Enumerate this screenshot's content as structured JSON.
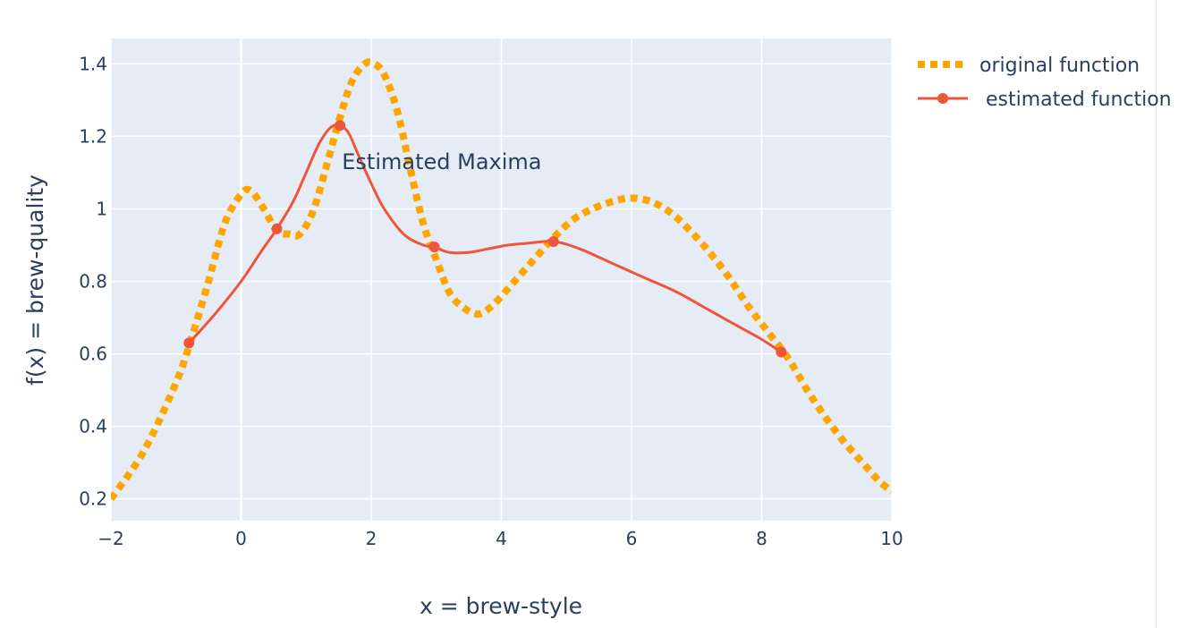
{
  "chart_data": {
    "type": "line",
    "xlabel": "x = brew-style",
    "ylabel": "f(x) = brew-quality",
    "xlim": [
      -2,
      10
    ],
    "ylim": [
      0.14,
      1.47
    ],
    "x_ticks": [
      "−2",
      "0",
      "2",
      "4",
      "6",
      "8",
      "10"
    ],
    "x_tick_values": [
      -2,
      0,
      2,
      4,
      6,
      8,
      10
    ],
    "y_ticks": [
      "0.2",
      "0.4",
      "0.6",
      "0.8",
      "1",
      "1.2",
      "1.4"
    ],
    "y_tick_values": [
      0.2,
      0.4,
      0.6,
      0.8,
      1.0,
      1.2,
      1.4
    ],
    "grid": true,
    "legend_position": "top-right",
    "series": [
      {
        "name": "original function",
        "style": "dotted",
        "color": "#ffa500",
        "x": [
          -2.0,
          -1.5,
          -1.0,
          -0.75,
          -0.5,
          -0.25,
          0.0,
          0.15,
          0.35,
          0.55,
          0.75,
          0.9,
          1.1,
          1.3,
          1.5,
          1.7,
          1.9,
          2.05,
          2.2,
          2.4,
          2.6,
          2.8,
          3.0,
          3.2,
          3.4,
          3.65,
          3.9,
          4.2,
          4.5,
          4.8,
          5.1,
          5.4,
          5.7,
          6.0,
          6.3,
          6.6,
          6.9,
          7.2,
          7.5,
          7.8,
          8.1,
          8.4,
          8.7,
          9.0,
          9.3,
          9.6,
          9.8,
          10.0
        ],
        "y": [
          0.2,
          0.33,
          0.52,
          0.65,
          0.8,
          0.96,
          1.04,
          1.05,
          1.0,
          0.94,
          0.93,
          0.93,
          0.99,
          1.11,
          1.24,
          1.35,
          1.4,
          1.4,
          1.37,
          1.27,
          1.11,
          0.96,
          0.86,
          0.77,
          0.73,
          0.71,
          0.74,
          0.8,
          0.86,
          0.92,
          0.97,
          1.0,
          1.02,
          1.03,
          1.02,
          0.99,
          0.94,
          0.88,
          0.81,
          0.73,
          0.66,
          0.59,
          0.5,
          0.42,
          0.35,
          0.29,
          0.25,
          0.22
        ]
      },
      {
        "name": " estimated function",
        "style": "lines+markers",
        "color": "#ef553b",
        "markers_x": [
          -0.8,
          0.55,
          1.52,
          2.97,
          4.8,
          8.3
        ],
        "markers_y": [
          0.63,
          0.945,
          1.23,
          0.895,
          0.91,
          0.605
        ],
        "x": [
          -0.8,
          -0.4,
          0.0,
          0.3,
          0.55,
          0.8,
          1.0,
          1.2,
          1.38,
          1.52,
          1.65,
          1.8,
          2.0,
          2.2,
          2.5,
          2.8,
          2.97,
          3.2,
          3.5,
          3.8,
          4.1,
          4.4,
          4.8,
          5.2,
          5.7,
          6.2,
          6.7,
          7.2,
          7.7,
          8.0,
          8.3
        ],
        "y": [
          0.63,
          0.71,
          0.8,
          0.88,
          0.945,
          1.02,
          1.1,
          1.18,
          1.225,
          1.23,
          1.21,
          1.15,
          1.07,
          1.0,
          0.93,
          0.9,
          0.895,
          0.88,
          0.88,
          0.89,
          0.9,
          0.905,
          0.91,
          0.89,
          0.85,
          0.81,
          0.77,
          0.72,
          0.67,
          0.64,
          0.605
        ]
      }
    ],
    "annotations": [
      {
        "text": "Estimated Maxima",
        "x": 1.55,
        "y": 1.13
      }
    ]
  }
}
